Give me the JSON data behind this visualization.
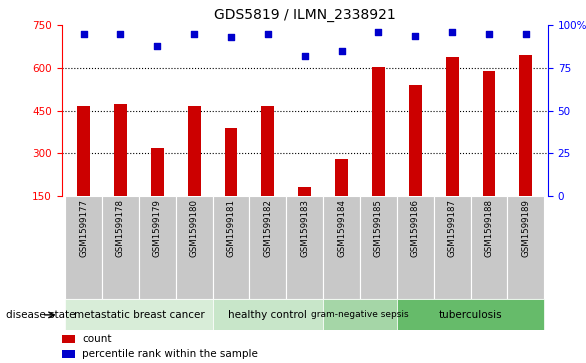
{
  "title": "GDS5819 / ILMN_2338921",
  "samples": [
    "GSM1599177",
    "GSM1599178",
    "GSM1599179",
    "GSM1599180",
    "GSM1599181",
    "GSM1599182",
    "GSM1599183",
    "GSM1599184",
    "GSM1599185",
    "GSM1599186",
    "GSM1599187",
    "GSM1599188",
    "GSM1599189"
  ],
  "counts": [
    465,
    475,
    320,
    465,
    390,
    465,
    180,
    280,
    605,
    540,
    640,
    590,
    645
  ],
  "percentiles": [
    95,
    95,
    88,
    95,
    93,
    95,
    82,
    85,
    96,
    94,
    96,
    95,
    95
  ],
  "bar_color": "#cc0000",
  "dot_color": "#0000cc",
  "ylim_left": [
    150,
    750
  ],
  "yticks_left": [
    150,
    300,
    450,
    600,
    750
  ],
  "ylim_right": [
    0,
    100
  ],
  "yticks_right": [
    0,
    25,
    50,
    75,
    100
  ],
  "groups": [
    {
      "label": "metastatic breast cancer",
      "start": 0,
      "end": 3,
      "color": "#d8edd8"
    },
    {
      "label": "healthy control",
      "start": 4,
      "end": 6,
      "color": "#c8e6c9"
    },
    {
      "label": "gram-negative sepsis",
      "start": 7,
      "end": 8,
      "color": "#a5d6a7"
    },
    {
      "label": "tuberculosis",
      "start": 9,
      "end": 12,
      "color": "#66bb6a"
    }
  ],
  "legend_bar_label": "count",
  "legend_dot_label": "percentile rank within the sample",
  "disease_state_label": "disease state",
  "xticklabel_bg": "#c8c8c8",
  "grid_lines": [
    300,
    450,
    600
  ]
}
